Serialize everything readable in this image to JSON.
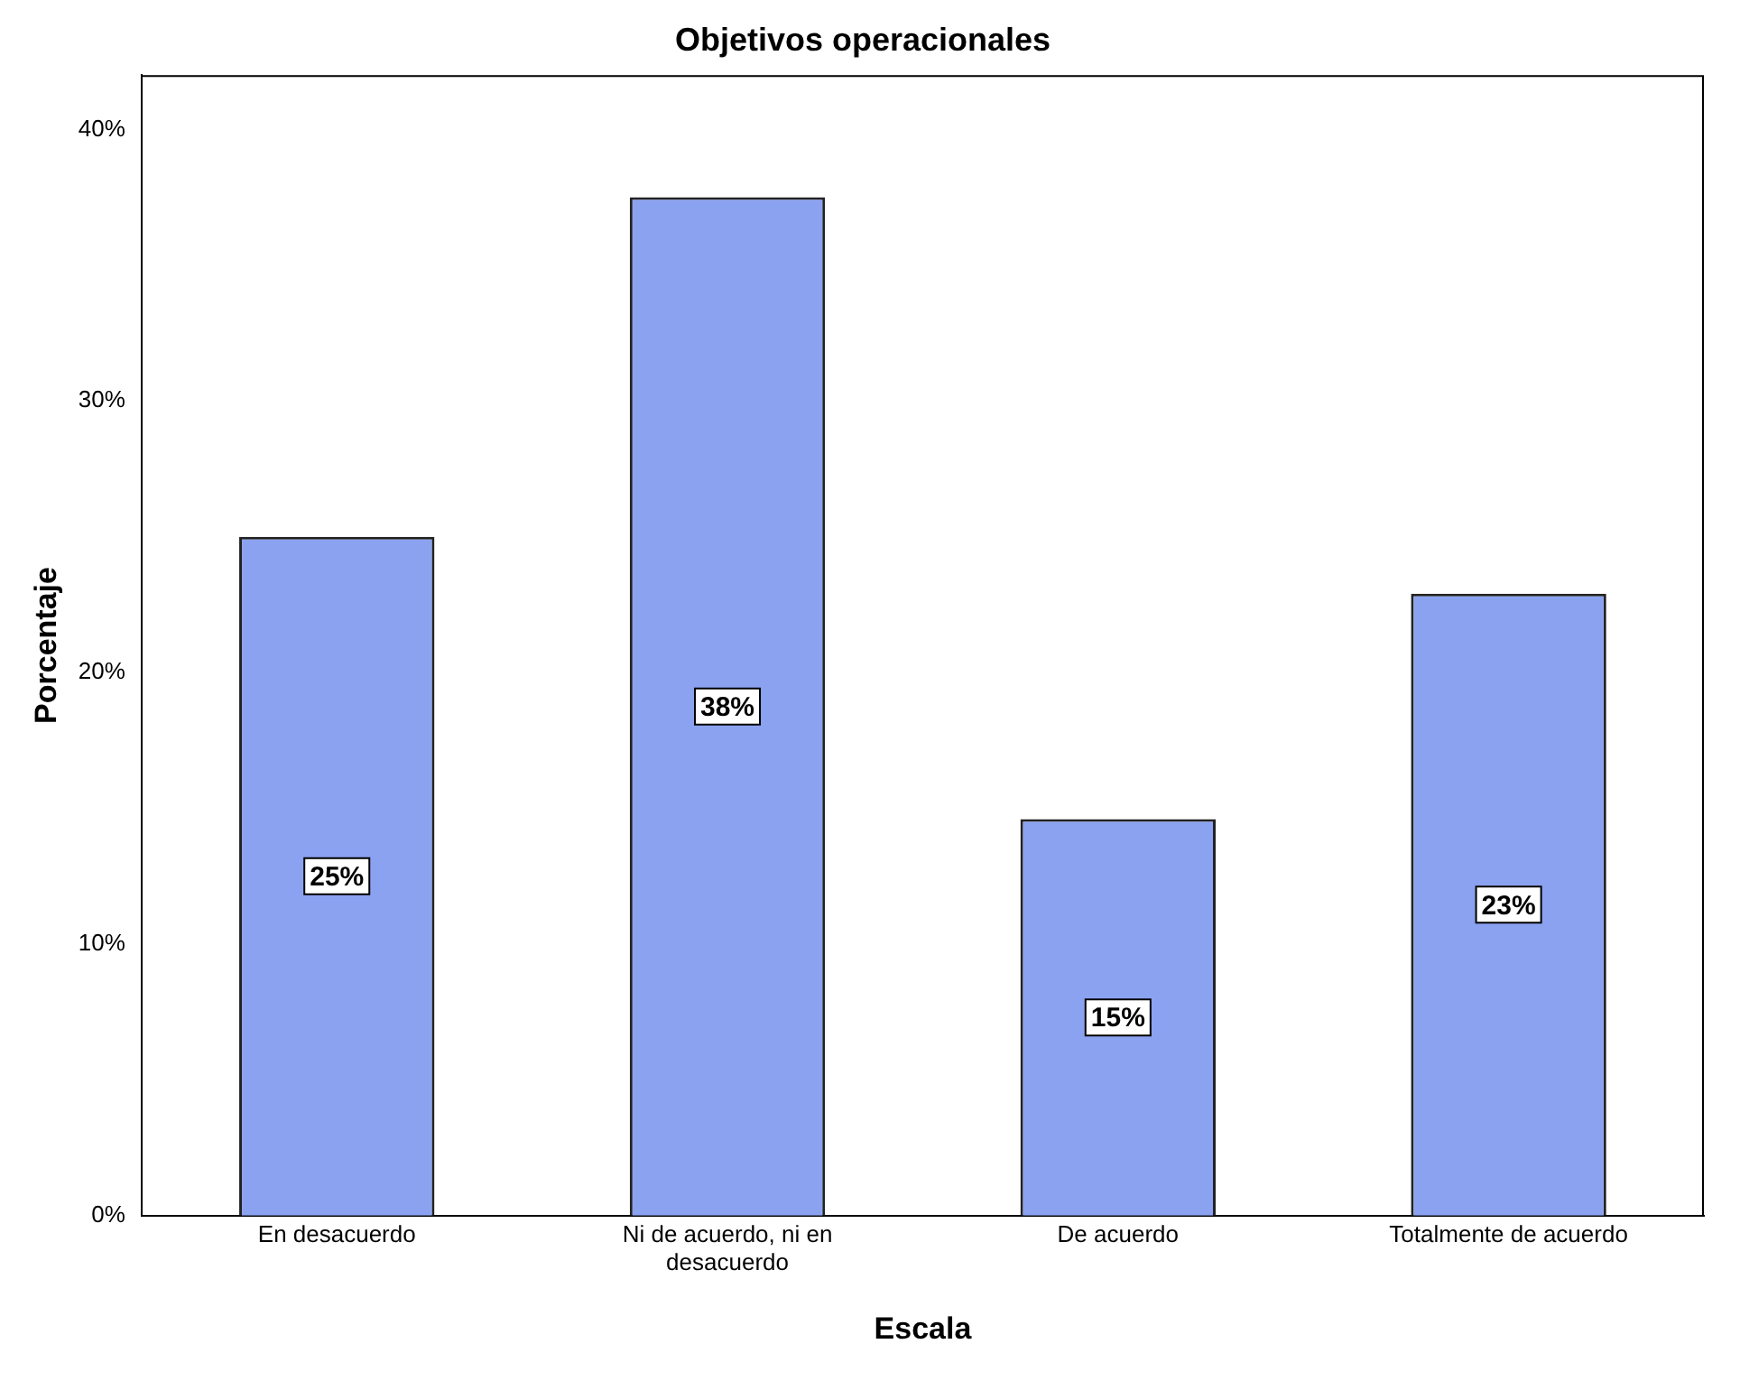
{
  "chart_data": {
    "type": "bar",
    "title": "Objetivos operacionales",
    "xlabel": "Escala",
    "ylabel": "Porcentaje",
    "categories": [
      "En desacuerdo",
      "Ni de acuerdo, ni en desacuerdo",
      "De acuerdo",
      "Totalmente de acuerdo"
    ],
    "values": [
      25,
      37.5,
      14.6,
      22.9
    ],
    "color": "#8aa2f0",
    "value_labels": [
      "25%",
      "38%",
      "15%",
      "23%"
    ],
    "ylim": [
      0,
      42
    ],
    "yticks": [
      {
        "value": 0,
        "label": "0%"
      },
      {
        "value": 10,
        "label": "10%"
      },
      {
        "value": 20,
        "label": "20%"
      },
      {
        "value": 30,
        "label": "30%"
      },
      {
        "value": 40,
        "label": "40%"
      }
    ],
    "grid": false,
    "legend": false
  }
}
